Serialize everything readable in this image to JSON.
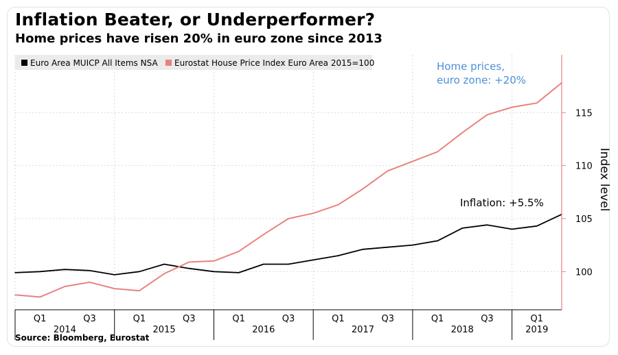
{
  "title": "Inflation Beater, or Underperformer?",
  "subtitle": "Home prices have risen 20% in euro zone since 2013",
  "source": "Source: Bloomberg, Eurostat",
  "chart_data": {
    "type": "line",
    "x_quarters": [
      "2013 Q4",
      "2014 Q1",
      "2014 Q2",
      "2014 Q3",
      "2014 Q4",
      "2015 Q1",
      "2015 Q2",
      "2015 Q3",
      "2015 Q4",
      "2016 Q1",
      "2016 Q2",
      "2016 Q3",
      "2016 Q4",
      "2017 Q1",
      "2017 Q2",
      "2017 Q3",
      "2017 Q4",
      "2018 Q1",
      "2018 Q2",
      "2018 Q3",
      "2018 Q4",
      "2019 Q1",
      "2019 Q2"
    ],
    "series": [
      {
        "name": "Euro Area MUICP All Items NSA",
        "color": "#000000",
        "values": [
          99.9,
          100.0,
          100.2,
          100.1,
          99.7,
          100.0,
          100.7,
          100.3,
          100.0,
          99.9,
          100.7,
          100.7,
          101.1,
          101.5,
          102.1,
          102.3,
          102.5,
          102.9,
          104.1,
          104.4,
          104.0,
          104.3,
          105.4
        ]
      },
      {
        "name": "Eurostat House Price Index Euro Area 2015=100",
        "color": "#e8827f",
        "values": [
          97.8,
          97.6,
          98.6,
          99.0,
          98.4,
          98.2,
          99.8,
          100.9,
          101.0,
          101.9,
          103.5,
          105.0,
          105.5,
          106.3,
          107.8,
          109.5,
          110.4,
          111.3,
          113.1,
          114.8,
          115.5,
          115.9,
          117.8
        ]
      }
    ],
    "yticks": [
      100,
      105,
      110,
      115
    ],
    "ylim": [
      96.4,
      119.8
    ],
    "ylabel": "Index level",
    "y_axis_side": "right",
    "y_axis_color": "#e8827f",
    "x_quarter_labels": [
      {
        "q": "2014 Q1",
        "label": "Q1"
      },
      {
        "q": "2014 Q3",
        "label": "Q3"
      },
      {
        "q": "2015 Q1",
        "label": "Q1"
      },
      {
        "q": "2015 Q3",
        "label": "Q3"
      },
      {
        "q": "2016 Q1",
        "label": "Q1"
      },
      {
        "q": "2016 Q3",
        "label": "Q3"
      },
      {
        "q": "2017 Q1",
        "label": "Q1"
      },
      {
        "q": "2017 Q3",
        "label": "Q3"
      },
      {
        "q": "2018 Q1",
        "label": "Q1"
      },
      {
        "q": "2018 Q3",
        "label": "Q3"
      },
      {
        "q": "2019 Q1",
        "label": "Q1"
      }
    ],
    "years": [
      "2014",
      "2015",
      "2016",
      "2017",
      "2018",
      "2019"
    ],
    "annotations": {
      "home_line1": "Home prices,",
      "home_line2": "euro zone: +20%",
      "inflation": "Inflation: +5.5%"
    },
    "grid": true,
    "legend_position": "top-left"
  }
}
